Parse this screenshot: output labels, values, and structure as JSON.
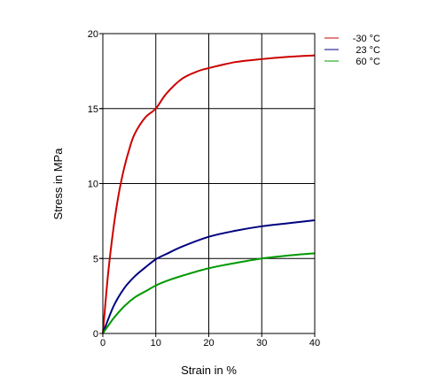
{
  "chart_data": {
    "type": "line",
    "title": "",
    "xlabel": "Strain in %",
    "ylabel": "Stress in MPa",
    "xlim": [
      0,
      40
    ],
    "ylim": [
      0,
      20
    ],
    "x_ticks": [
      0,
      10,
      20,
      30,
      40
    ],
    "y_ticks": [
      0,
      5,
      10,
      15,
      20
    ],
    "grid": true,
    "legend_position": "top-right",
    "series": [
      {
        "name": "-30 °C",
        "color": "#cc0000",
        "x": [
          0,
          1,
          2,
          3,
          4,
          5,
          6,
          8,
          10,
          12,
          15,
          18,
          20,
          25,
          30,
          35,
          40
        ],
        "y": [
          0,
          4.0,
          7.0,
          9.3,
          11.0,
          12.3,
          13.3,
          14.4,
          15.0,
          16.0,
          17.0,
          17.5,
          17.7,
          18.1,
          18.3,
          18.45,
          18.55
        ]
      },
      {
        "name": "23 °C",
        "color": "#000080",
        "x": [
          0,
          2,
          4,
          6,
          8,
          10,
          12,
          15,
          20,
          25,
          30,
          35,
          40
        ],
        "y": [
          0,
          1.8,
          3.0,
          3.8,
          4.4,
          4.95,
          5.3,
          5.8,
          6.45,
          6.85,
          7.15,
          7.35,
          7.55
        ]
      },
      {
        "name": "60 °C",
        "color": "#009900",
        "x": [
          0,
          2,
          4,
          6,
          8,
          10,
          12,
          15,
          20,
          25,
          30,
          35,
          40
        ],
        "y": [
          0,
          1.0,
          1.8,
          2.4,
          2.8,
          3.2,
          3.5,
          3.85,
          4.35,
          4.7,
          5.0,
          5.2,
          5.35
        ]
      }
    ]
  }
}
